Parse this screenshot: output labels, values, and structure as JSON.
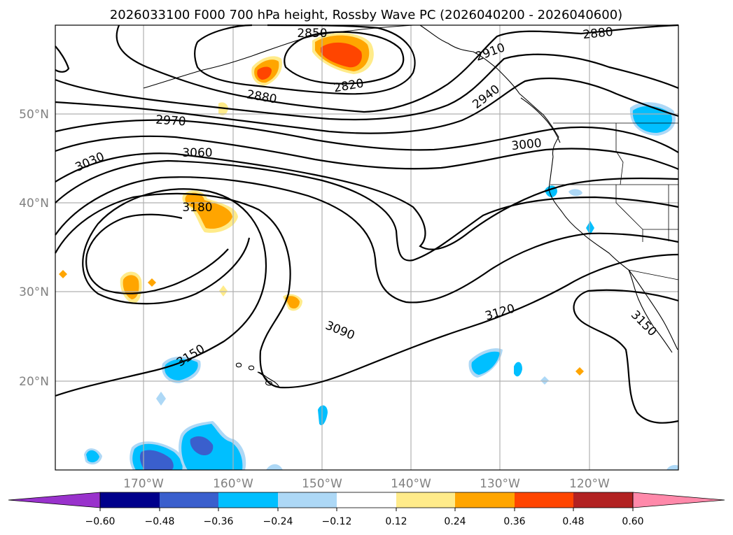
{
  "title": "2026033100 F000 700 hPa height, Rossby Wave PC (2026040200 - 2026040600)",
  "lat_labels": [
    "50°N",
    "40°N",
    "30°N",
    "20°N"
  ],
  "lon_labels": [
    "170°W",
    "160°W",
    "150°W",
    "140°W",
    "130°W",
    "120°W"
  ],
  "contour_labels": [
    "2850",
    "2880",
    "2880",
    "2820",
    "2910",
    "2940",
    "2970",
    "3000",
    "3030",
    "3060",
    "3180",
    "3090",
    "3120",
    "3150",
    "3150"
  ],
  "colorbar": {
    "ticks": [
      "−0.60",
      "−0.48",
      "−0.36",
      "−0.24",
      "−0.12",
      "0.12",
      "0.24",
      "0.36",
      "0.48",
      "0.60"
    ],
    "colors": [
      "#9932cc",
      "#00008b",
      "#3a5fcd",
      "#00bfff",
      "#add8f6",
      "#ffffff",
      "#ffeb8a",
      "#ffa500",
      "#ff4500",
      "#b22222",
      "#ff89aa"
    ]
  }
}
